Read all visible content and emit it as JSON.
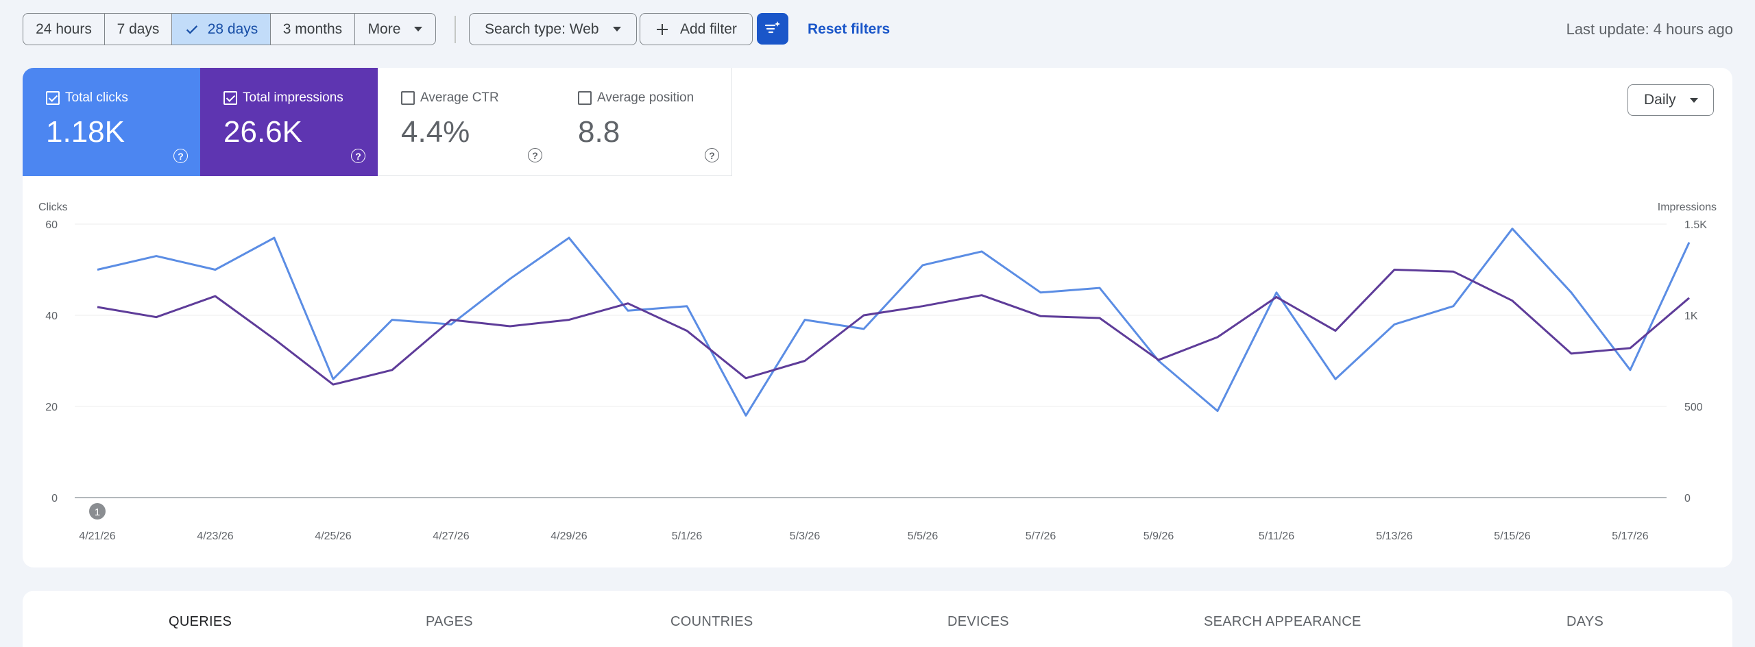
{
  "toolbar": {
    "ranges": [
      {
        "label": "24 hours",
        "active": false
      },
      {
        "label": "7 days",
        "active": false
      },
      {
        "label": "28 days",
        "active": true
      },
      {
        "label": "3 months",
        "active": false
      },
      {
        "label": "More",
        "active": false
      }
    ],
    "search_type": "Search type: Web",
    "add_filter": "Add filter",
    "reset_filters": "Reset filters",
    "last_update": "Last update: 4 hours ago"
  },
  "metrics": {
    "clicks": {
      "label": "Total clicks",
      "value": "1.18K",
      "checked": true,
      "color": "#4c86f1"
    },
    "impressions": {
      "label": "Total impressions",
      "value": "26.6K",
      "checked": true,
      "color": "#5e35b1"
    },
    "ctr": {
      "label": "Average CTR",
      "value": "4.4%",
      "checked": false
    },
    "position": {
      "label": "Average position",
      "value": "8.8",
      "checked": false
    }
  },
  "granularity": "Daily",
  "chart_data": {
    "type": "line",
    "left_axis_label": "Clicks",
    "right_axis_label": "Impressions",
    "left_ticks": [
      "60",
      "40",
      "20",
      "0"
    ],
    "right_ticks": [
      "1.5K",
      "1K",
      "500",
      "0"
    ],
    "ylim_left": [
      0,
      60
    ],
    "ylim_right": [
      0,
      1500
    ],
    "x_tick_labels": [
      "4/21/26",
      "4/23/26",
      "4/25/26",
      "4/27/26",
      "4/29/26",
      "5/1/26",
      "5/3/26",
      "5/5/26",
      "5/7/26",
      "5/9/26",
      "5/11/26",
      "5/13/26",
      "5/15/26",
      "5/17/26"
    ],
    "annotation": "1",
    "grid": true,
    "series": [
      {
        "name": "Total clicks",
        "axis": "left",
        "color": "#5b8de4",
        "values": [
          50,
          53,
          50,
          57,
          26,
          39,
          38,
          48,
          57,
          41,
          42,
          18,
          39,
          37,
          51,
          54,
          45,
          46,
          30,
          19,
          45,
          26,
          38,
          42,
          59,
          45,
          28,
          56
        ]
      },
      {
        "name": "Total impressions",
        "axis": "right",
        "color": "#5e3c99",
        "values": [
          1045,
          990,
          1105,
          870,
          620,
          700,
          975,
          940,
          975,
          1065,
          915,
          655,
          750,
          1000,
          1050,
          1110,
          995,
          985,
          755,
          880,
          1100,
          915,
          1250,
          1240,
          1080,
          790,
          820,
          1095
        ]
      }
    ]
  },
  "tabs": [
    {
      "label": "QUERIES",
      "active": true
    },
    {
      "label": "PAGES",
      "active": false
    },
    {
      "label": "COUNTRIES",
      "active": false
    },
    {
      "label": "DEVICES",
      "active": false
    },
    {
      "label": "SEARCH APPEARANCE",
      "active": false
    },
    {
      "label": "DAYS",
      "active": false
    }
  ]
}
